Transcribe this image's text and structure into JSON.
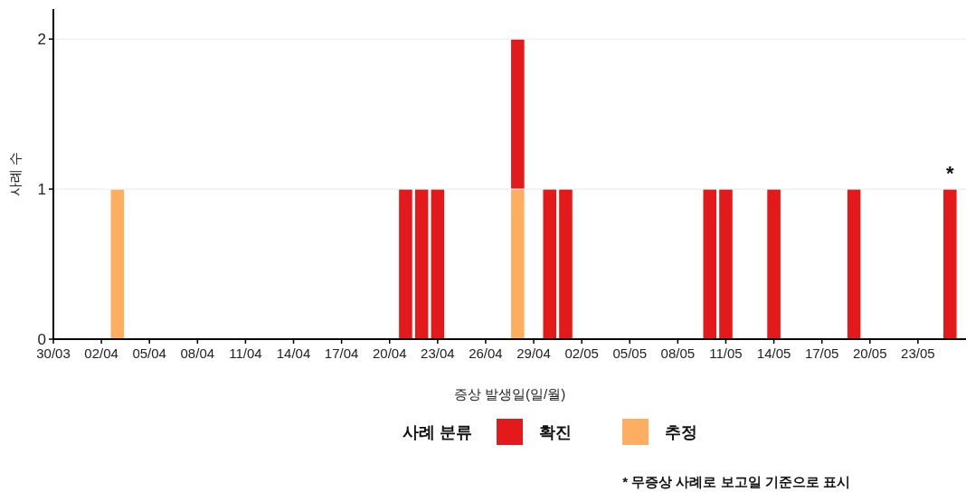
{
  "chart_data": {
    "type": "bar",
    "stacked": true,
    "xlabel": "증상 발생일(일/월)",
    "ylabel": "사례 수",
    "legend_title": "사례 분류",
    "legend": "bottom",
    "grid": "y",
    "x": [
      "--04-03",
      "--04-21",
      "--04-22",
      "--04-23",
      "--04-28",
      "--04-30",
      "--05-01",
      "--05-10",
      "--05-11",
      "--05-14",
      "--05-19",
      "--05-25"
    ],
    "series": [
      {
        "name": "추정",
        "color": "#fdae61",
        "values": [
          1,
          0,
          0,
          0,
          1,
          0,
          0,
          0,
          0,
          0,
          0,
          0
        ]
      },
      {
        "name": "확진",
        "color": "#e31a1c",
        "values": [
          0,
          1,
          1,
          1,
          1,
          1,
          1,
          1,
          1,
          1,
          1,
          1
        ]
      }
    ],
    "xlim": [
      "--03-30",
      "--05-26"
    ],
    "xticks": [
      {
        "value": "--03-30",
        "label": "30/03"
      },
      {
        "value": "--04-02",
        "label": "02/04"
      },
      {
        "value": "--04-05",
        "label": "05/04"
      },
      {
        "value": "--04-08",
        "label": "08/04"
      },
      {
        "value": "--04-11",
        "label": "11/04"
      },
      {
        "value": "--04-14",
        "label": "14/04"
      },
      {
        "value": "--04-17",
        "label": "17/04"
      },
      {
        "value": "--04-20",
        "label": "20/04"
      },
      {
        "value": "--04-23",
        "label": "23/04"
      },
      {
        "value": "--04-26",
        "label": "26/04"
      },
      {
        "value": "--04-29",
        "label": "29/04"
      },
      {
        "value": "--05-02",
        "label": "02/05"
      },
      {
        "value": "--05-05",
        "label": "05/05"
      },
      {
        "value": "--05-08",
        "label": "08/05"
      },
      {
        "value": "--05-11",
        "label": "11/05"
      },
      {
        "value": "--05-14",
        "label": "14/05"
      },
      {
        "value": "--05-17",
        "label": "17/05"
      },
      {
        "value": "--05-20",
        "label": "20/05"
      },
      {
        "value": "--05-23",
        "label": "23/05"
      }
    ],
    "ylim": [
      0,
      2.2
    ],
    "yticks": [
      0,
      1,
      2
    ],
    "annotations": [
      {
        "text": "*",
        "x": "--05-25",
        "y": 1
      },
      "* 무증상 사례로 보고일 기준으로 표시"
    ]
  }
}
